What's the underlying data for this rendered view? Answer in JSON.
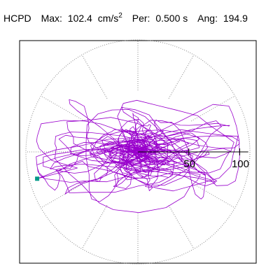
{
  "header": {
    "station": "HCPD",
    "max_label": "Max:",
    "max_value": "102.4",
    "max_unit": "cm/s",
    "max_unit_exp": "2",
    "per_label": "Per:",
    "per_value": "0.500 s",
    "ang_label": "Ang:",
    "ang_value": "194.9"
  },
  "chart_data": {
    "type": "line",
    "plot": "polar-orbit",
    "title": "",
    "radial_ticks": [
      50,
      100
    ],
    "radial_tick_labels": [
      "50",
      "100"
    ],
    "r_max": 110,
    "angular_gridlines_deg": [
      0,
      30,
      60,
      90,
      120,
      150,
      180,
      210,
      240,
      270,
      300,
      330
    ],
    "circle_gridline_r": 110,
    "grid": true,
    "trace_color": "#9900cc",
    "marker_color": "#009988",
    "max_amplitude": 102.4,
    "max_angle_deg": 194.9,
    "unit": "cm/s^2",
    "period_s": 0.5,
    "n_points": 1400
  }
}
